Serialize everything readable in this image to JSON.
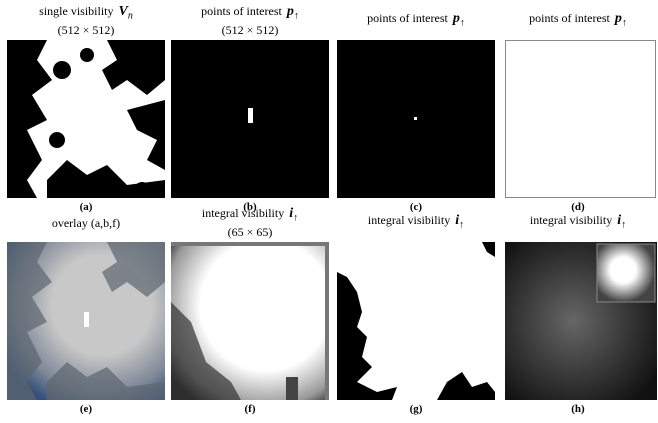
{
  "panels": [
    {
      "title": "single visibility",
      "symbol": "V",
      "sub": "n",
      "size": "(512 × 512)",
      "label": "(a)"
    },
    {
      "title": "points of interest",
      "symbol": "p",
      "sub": "↑",
      "size": "(512 × 512)",
      "label": "(b)"
    },
    {
      "title": "points of interest",
      "symbol": "p",
      "sub": "↑",
      "label": "(c)"
    },
    {
      "title": "points of interest",
      "symbol": "p",
      "sub": "↑",
      "label": "(d)"
    },
    {
      "title": "overlay (a,b,f)",
      "label": "(e)"
    },
    {
      "title": "integral visibility",
      "symbol": "i",
      "sub": "↑",
      "size": "(65 × 65)",
      "label": "(f)"
    },
    {
      "title": "integral visibility",
      "symbol": "i",
      "sub": "↑",
      "label": "(g)"
    },
    {
      "title": "integral visibility",
      "symbol": "i",
      "sub": "↑",
      "label": "(h)"
    }
  ]
}
